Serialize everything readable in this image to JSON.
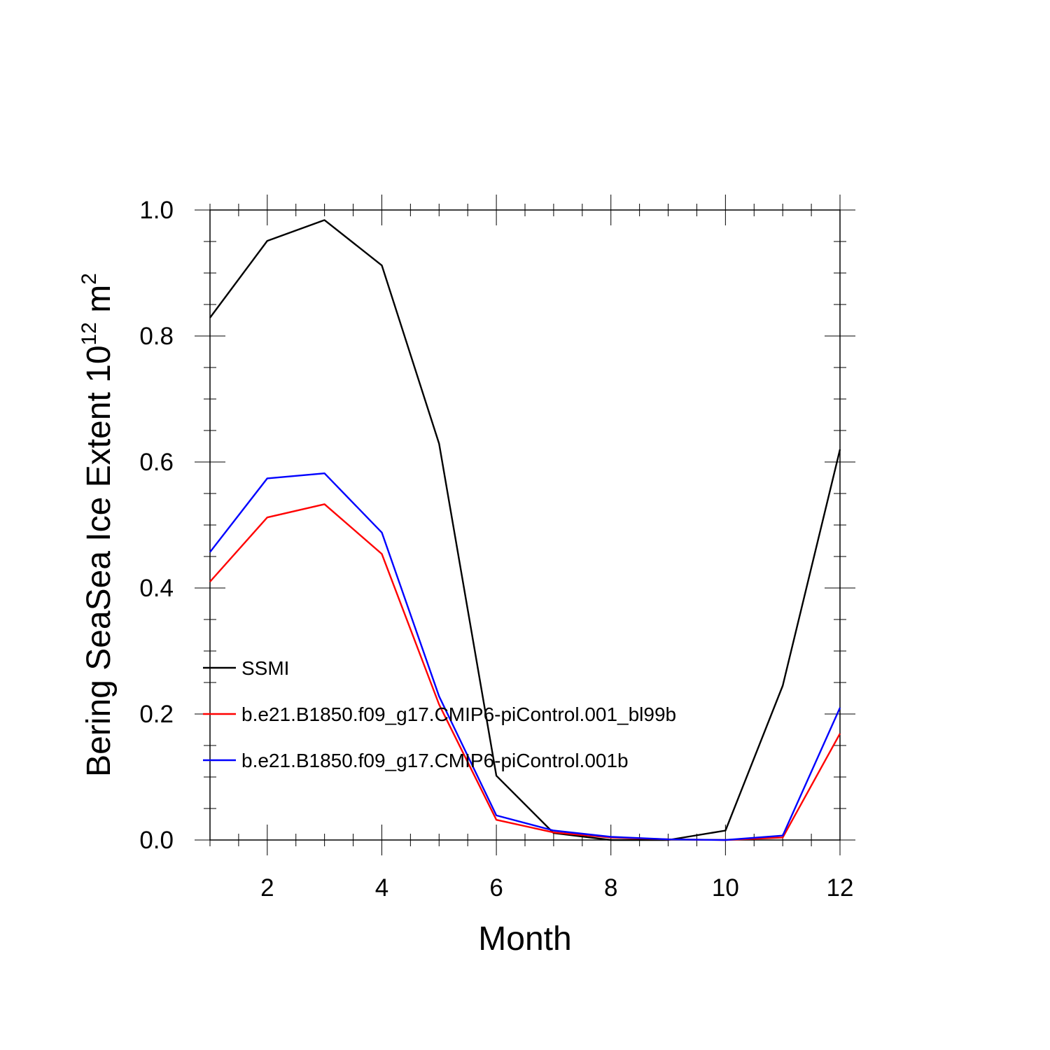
{
  "chart_data": {
    "type": "line",
    "title": "",
    "xlabel": "Month",
    "ylabel": {
      "prefix": "Bering SeaSea Ice Extent 10",
      "exponent": "12",
      "mid": " m",
      "unit_exponent": "2"
    },
    "xlim": [
      1,
      12
    ],
    "ylim": [
      0,
      1.0
    ],
    "xticks": [
      2,
      4,
      6,
      8,
      10,
      12
    ],
    "xtick_labels": [
      "2",
      "4",
      "6",
      "8",
      "10",
      "12"
    ],
    "yticks": [
      0.0,
      0.2,
      0.4,
      0.6,
      0.8,
      1.0
    ],
    "ytick_labels": [
      "0.0",
      "0.2",
      "0.4",
      "0.6",
      "0.8",
      "1.0"
    ],
    "grid": false,
    "legend_position": "lower-left",
    "x": [
      1,
      2,
      3,
      4,
      5,
      6,
      7,
      8,
      9,
      10,
      11,
      12
    ],
    "series": [
      {
        "name": "SSMI",
        "color": "#000000",
        "values": [
          0.829,
          0.951,
          0.984,
          0.912,
          0.629,
          0.102,
          0.011,
          0.0,
          0.0,
          0.015,
          0.245,
          0.62
        ]
      },
      {
        "name": "b.e21.B1850.f09_g17.CMIP6-piControl.001_bl99b",
        "color": "#ff0000",
        "values": [
          0.41,
          0.512,
          0.533,
          0.454,
          0.215,
          0.032,
          0.012,
          0.004,
          0.001,
          0.0,
          0.004,
          0.169
        ]
      },
      {
        "name": "b.e21.B1850.f09_g17.CMIP6-piControl.001b",
        "color": "#0000ff",
        "values": [
          0.457,
          0.574,
          0.582,
          0.488,
          0.228,
          0.039,
          0.015,
          0.005,
          0.001,
          0.0,
          0.007,
          0.21
        ]
      }
    ]
  }
}
